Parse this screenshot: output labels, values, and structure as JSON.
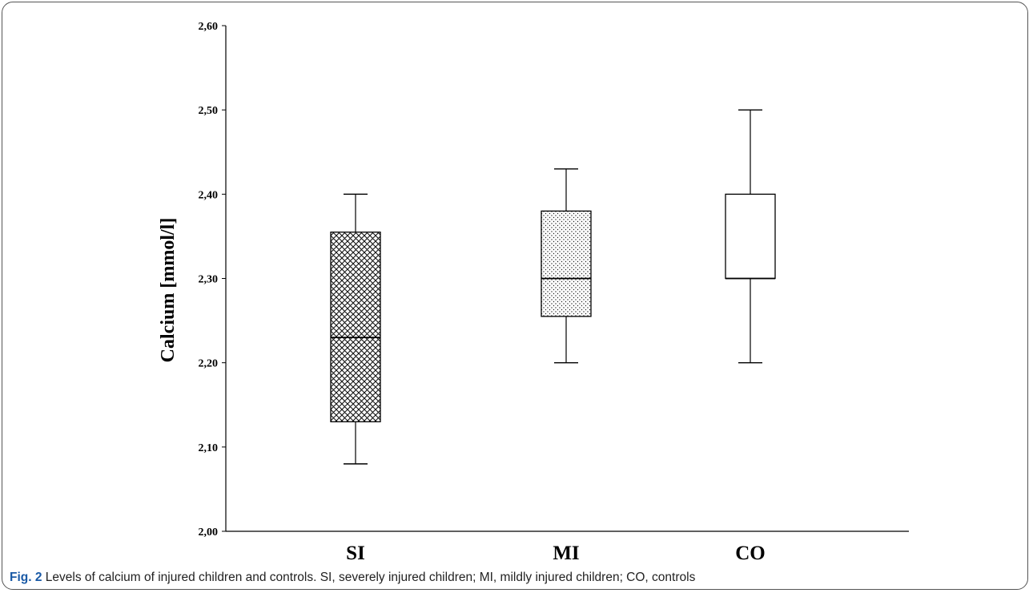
{
  "chart_data": {
    "type": "box",
    "ylabel": "Calcium [mmol/l]",
    "ylim": [
      2.0,
      2.6
    ],
    "yticks": [
      "2,00",
      "2,10",
      "2,20",
      "2,30",
      "2,40",
      "2,50",
      "2,60"
    ],
    "ytick_values": [
      2.0,
      2.1,
      2.2,
      2.3,
      2.4,
      2.5,
      2.6
    ],
    "categories": [
      "SI",
      "MI",
      "CO"
    ],
    "boxes": [
      {
        "category": "SI",
        "min": 2.08,
        "q1": 2.13,
        "median": 2.23,
        "q3": 2.355,
        "max": 2.4,
        "fill": "crosshatch"
      },
      {
        "category": "MI",
        "min": 2.2,
        "q1": 2.255,
        "median": 2.3,
        "q3": 2.38,
        "max": 2.43,
        "fill": "dots"
      },
      {
        "category": "CO",
        "min": 2.2,
        "q1": 2.3,
        "median": 2.3,
        "q3": 2.4,
        "max": 2.5,
        "fill": "none"
      }
    ],
    "grid": false
  },
  "caption": {
    "label": "Fig. 2",
    "text": "Levels of calcium of injured children and controls. SI, severely injured children; MI, mildly injured children; CO, controls"
  }
}
